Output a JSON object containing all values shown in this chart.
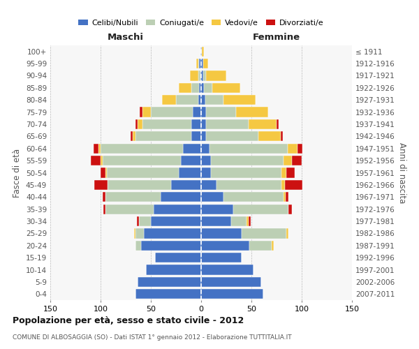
{
  "age_groups": [
    "0-4",
    "5-9",
    "10-14",
    "15-19",
    "20-24",
    "25-29",
    "30-34",
    "35-39",
    "40-44",
    "45-49",
    "50-54",
    "55-59",
    "60-64",
    "65-69",
    "70-74",
    "75-79",
    "80-84",
    "85-89",
    "90-94",
    "95-99",
    "100+"
  ],
  "birth_years": [
    "2007-2011",
    "2002-2006",
    "1997-2001",
    "1992-1996",
    "1987-1991",
    "1982-1986",
    "1977-1981",
    "1972-1976",
    "1967-1971",
    "1962-1966",
    "1957-1961",
    "1952-1956",
    "1947-1951",
    "1942-1946",
    "1937-1941",
    "1932-1936",
    "1927-1931",
    "1922-1926",
    "1917-1921",
    "1912-1916",
    "≤ 1911"
  ],
  "colors": {
    "celibi": "#4472C4",
    "coniugati": "#BCCFB4",
    "vedovi": "#F5C842",
    "divorziati": "#CC1111"
  },
  "male": {
    "celibi": [
      65,
      63,
      55,
      46,
      60,
      57,
      50,
      47,
      40,
      30,
      22,
      20,
      18,
      10,
      10,
      8,
      3,
      2,
      1,
      2,
      1
    ],
    "coniugati": [
      0,
      0,
      0,
      0,
      5,
      8,
      12,
      48,
      55,
      63,
      72,
      78,
      82,
      55,
      48,
      42,
      22,
      8,
      2,
      1,
      0
    ],
    "vedovi": [
      0,
      0,
      0,
      0,
      0,
      2,
      0,
      0,
      0,
      0,
      1,
      2,
      2,
      3,
      5,
      8,
      14,
      12,
      8,
      2,
      0
    ],
    "divorziati": [
      0,
      0,
      0,
      0,
      0,
      0,
      2,
      2,
      3,
      13,
      5,
      10,
      5,
      2,
      2,
      3,
      0,
      0,
      0,
      0,
      0
    ]
  },
  "female": {
    "nubili": [
      62,
      60,
      52,
      40,
      48,
      40,
      30,
      32,
      22,
      15,
      10,
      10,
      8,
      5,
      5,
      5,
      4,
      3,
      2,
      2,
      1
    ],
    "coniugate": [
      0,
      0,
      0,
      0,
      22,
      45,
      15,
      55,
      60,
      65,
      70,
      72,
      78,
      52,
      42,
      30,
      18,
      8,
      3,
      0,
      0
    ],
    "vedove": [
      0,
      0,
      0,
      0,
      2,
      2,
      2,
      0,
      2,
      3,
      5,
      8,
      10,
      22,
      28,
      32,
      32,
      28,
      20,
      5,
      2
    ],
    "divorziate": [
      0,
      0,
      0,
      0,
      0,
      0,
      2,
      3,
      3,
      18,
      8,
      10,
      5,
      2,
      2,
      0,
      0,
      0,
      0,
      0,
      0
    ]
  },
  "xlim": 150,
  "title_main": "Popolazione per età, sesso e stato civile - 2012",
  "title_sub": "COMUNE DI ALBOSAGGIA (SO) - Dati ISTAT 1° gennaio 2012 - Elaborazione TUTTITALIA.IT",
  "ylabel_left": "Fasce di età",
  "ylabel_right": "Anni di nascita",
  "legend_labels": [
    "Celibi/Nubili",
    "Coniugati/e",
    "Vedovi/e",
    "Divorziati/e"
  ],
  "maschi_label": "Maschi",
  "femmine_label": "Femmine",
  "background_color": "#FFFFFF",
  "grid_color": "#BBBBBB"
}
